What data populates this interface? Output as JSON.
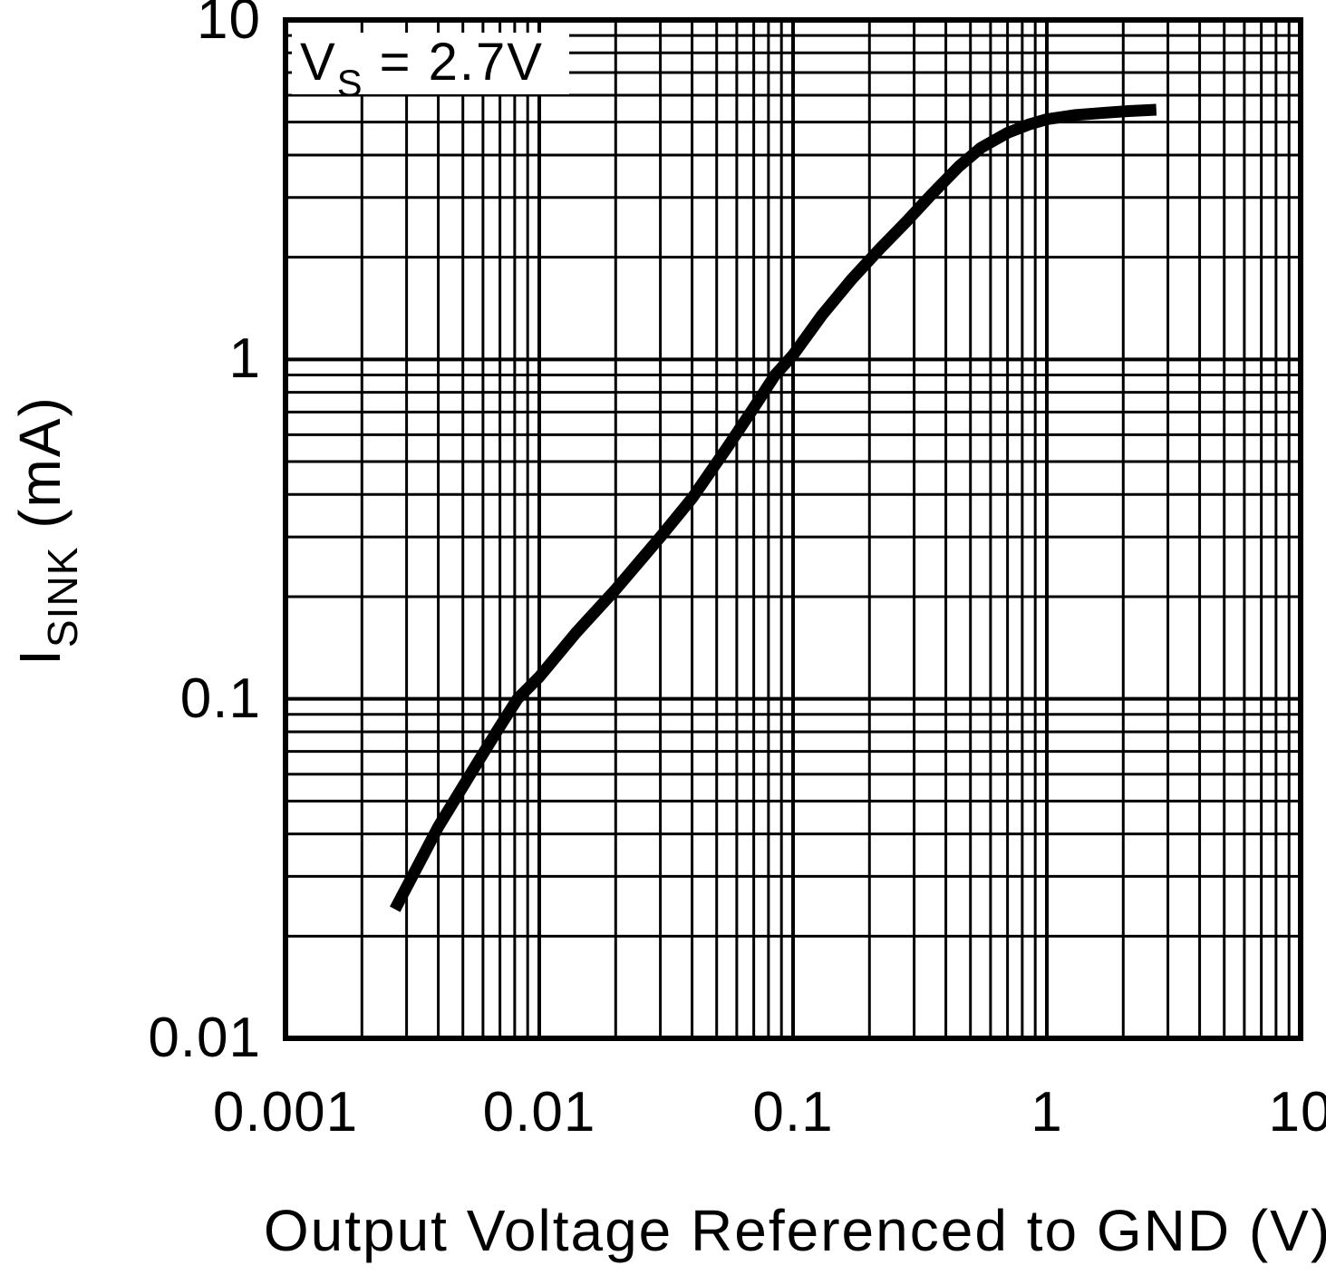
{
  "chart_data": {
    "type": "line",
    "title": "",
    "annotation": {
      "base": "V",
      "sub": "S",
      "rest": " = 2.7V",
      "text": "Vs = 2.7V"
    },
    "xlabel": "Output Voltage Referenced to GND (V)",
    "ylabel": {
      "base": "I",
      "sub": "SINK",
      "rest": " (mA)",
      "text": "Isink (mA)"
    },
    "x_axis": {
      "scale": "log",
      "min": 0.001,
      "max": 10,
      "tick_values": [
        0.001,
        0.01,
        0.1,
        1,
        10
      ],
      "tick_labels": [
        "0.001",
        "0.01",
        "0.1",
        "1",
        "10"
      ]
    },
    "y_axis": {
      "scale": "log",
      "min": 0.01,
      "max": 10,
      "tick_values": [
        0.01,
        0.1,
        1,
        10
      ],
      "tick_labels": [
        "0.01",
        "0.1",
        "1",
        "10"
      ]
    },
    "grid": "log minor gridlines on, both axes",
    "legend": "none",
    "series": [
      {
        "points": [
          [
            0.0027,
            0.024
          ],
          [
            0.004,
            0.042
          ],
          [
            0.0055,
            0.062
          ],
          [
            0.007,
            0.083
          ],
          [
            0.0082,
            0.1
          ],
          [
            0.01,
            0.116
          ],
          [
            0.014,
            0.157
          ],
          [
            0.02,
            0.21
          ],
          [
            0.03,
            0.3
          ],
          [
            0.04,
            0.39
          ],
          [
            0.055,
            0.55
          ],
          [
            0.07,
            0.72
          ],
          [
            0.085,
            0.9
          ],
          [
            0.1,
            1.03
          ],
          [
            0.13,
            1.35
          ],
          [
            0.17,
            1.72
          ],
          [
            0.22,
            2.12
          ],
          [
            0.28,
            2.55
          ],
          [
            0.35,
            3.05
          ],
          [
            0.45,
            3.7
          ],
          [
            0.55,
            4.2
          ],
          [
            0.7,
            4.65
          ],
          [
            0.85,
            4.92
          ],
          [
            1.0,
            5.1
          ],
          [
            1.3,
            5.25
          ],
          [
            1.7,
            5.33
          ],
          [
            2.1,
            5.39
          ],
          [
            2.7,
            5.44
          ]
        ]
      }
    ],
    "colors": {
      "curve": "#000000",
      "grid": "#000000",
      "frame": "#000000",
      "background": "#ffffff"
    }
  }
}
